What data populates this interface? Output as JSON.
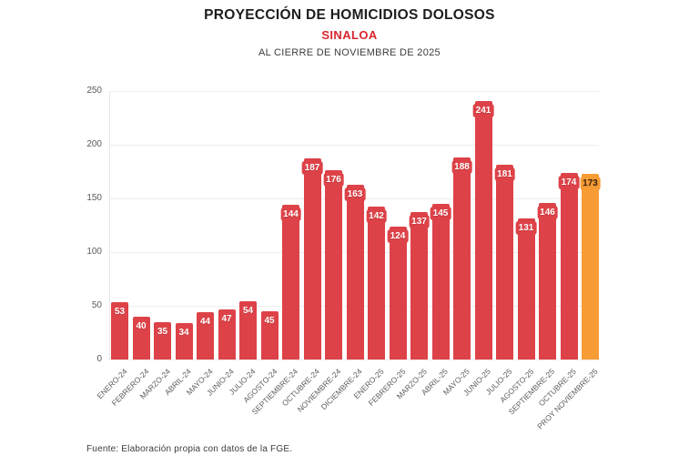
{
  "header": {
    "title": "PROYECCIÓN DE HOMICIDIOS DOLOSOS",
    "subtitle": "SINALOA",
    "caption": "AL CIERRE DE NOVIEMBRE DE 2025"
  },
  "footer": {
    "source": "Fuente: Elaboración propia con datos de la FGE."
  },
  "colors": {
    "bar_red": "#dd4248",
    "highlight_orange": "#f79b35",
    "subtitle_red": "#d8262e"
  },
  "chart_data": {
    "type": "bar",
    "title": "PROYECCIÓN DE HOMICIDIOS DOLOSOS",
    "subtitle": "SINALOA",
    "caption": "AL CIERRE DE NOVIEMBRE DE 2025",
    "xlabel": "",
    "ylabel": "",
    "ylim": [
      0,
      250
    ],
    "yticks": [
      0,
      50,
      100,
      150,
      200,
      250
    ],
    "grid": true,
    "legend": false,
    "categories": [
      "ENERO-24",
      "FEBRERO-24",
      "MARZO-24",
      "ABRIL-24",
      "MAYO-24",
      "JUNIO-24",
      "JULIO-24",
      "AGOSTO-24",
      "SEPTIEMBRE-24",
      "OCTUBRE-24",
      "NOVIEMBRE-24",
      "DICIEMBRE-24",
      "ENERO-25",
      "FEBRERO-25",
      "MARZO-25",
      "ABRIL-25",
      "MAYO-25",
      "JUNIO-25",
      "JULIO-25",
      "AGOSTO-25",
      "SEPTIEMBRE-25",
      "OCTUBRE-25",
      "PROY NOVIEMBRE-25"
    ],
    "values": [
      53,
      40,
      35,
      34,
      44,
      47,
      54,
      45,
      144,
      187,
      176,
      163,
      142,
      124,
      137,
      145,
      188,
      241,
      181,
      131,
      146,
      174,
      173
    ],
    "highlight_index": 22,
    "bar_color": "#dd4248",
    "highlight_color": "#f79b35",
    "value_label_text_color": "#ffffff",
    "highlight_value_label_text_color": "#42270b"
  }
}
